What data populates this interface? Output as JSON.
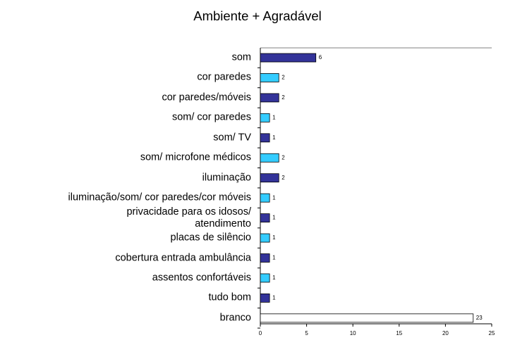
{
  "chart_data": {
    "type": "barh",
    "title": "Ambiente + Agradável",
    "categories": [
      "som",
      "cor paredes",
      "cor paredes/móveis",
      "som/ cor paredes",
      "som/ TV",
      "som/ microfone médicos",
      "iluminação",
      "iluminação/som/ cor paredes/cor móveis",
      "privacidade para os idosos/\natendimento",
      "placas de silêncio",
      "cobertura entrada ambulância",
      "assentos confortáveis",
      "tudo bom",
      "branco"
    ],
    "values": [
      6,
      2,
      2,
      1,
      1,
      2,
      2,
      1,
      1,
      1,
      1,
      1,
      1,
      23
    ],
    "colors": [
      "#333399",
      "#33ccff",
      "#333399",
      "#33ccff",
      "#333399",
      "#33ccff",
      "#333399",
      "#33ccff",
      "#333399",
      "#33ccff",
      "#333399",
      "#33ccff",
      "#333399",
      "#ffffff"
    ],
    "xlim": [
      0,
      25
    ],
    "xticks": [
      0,
      5,
      10,
      15,
      20,
      25
    ]
  }
}
